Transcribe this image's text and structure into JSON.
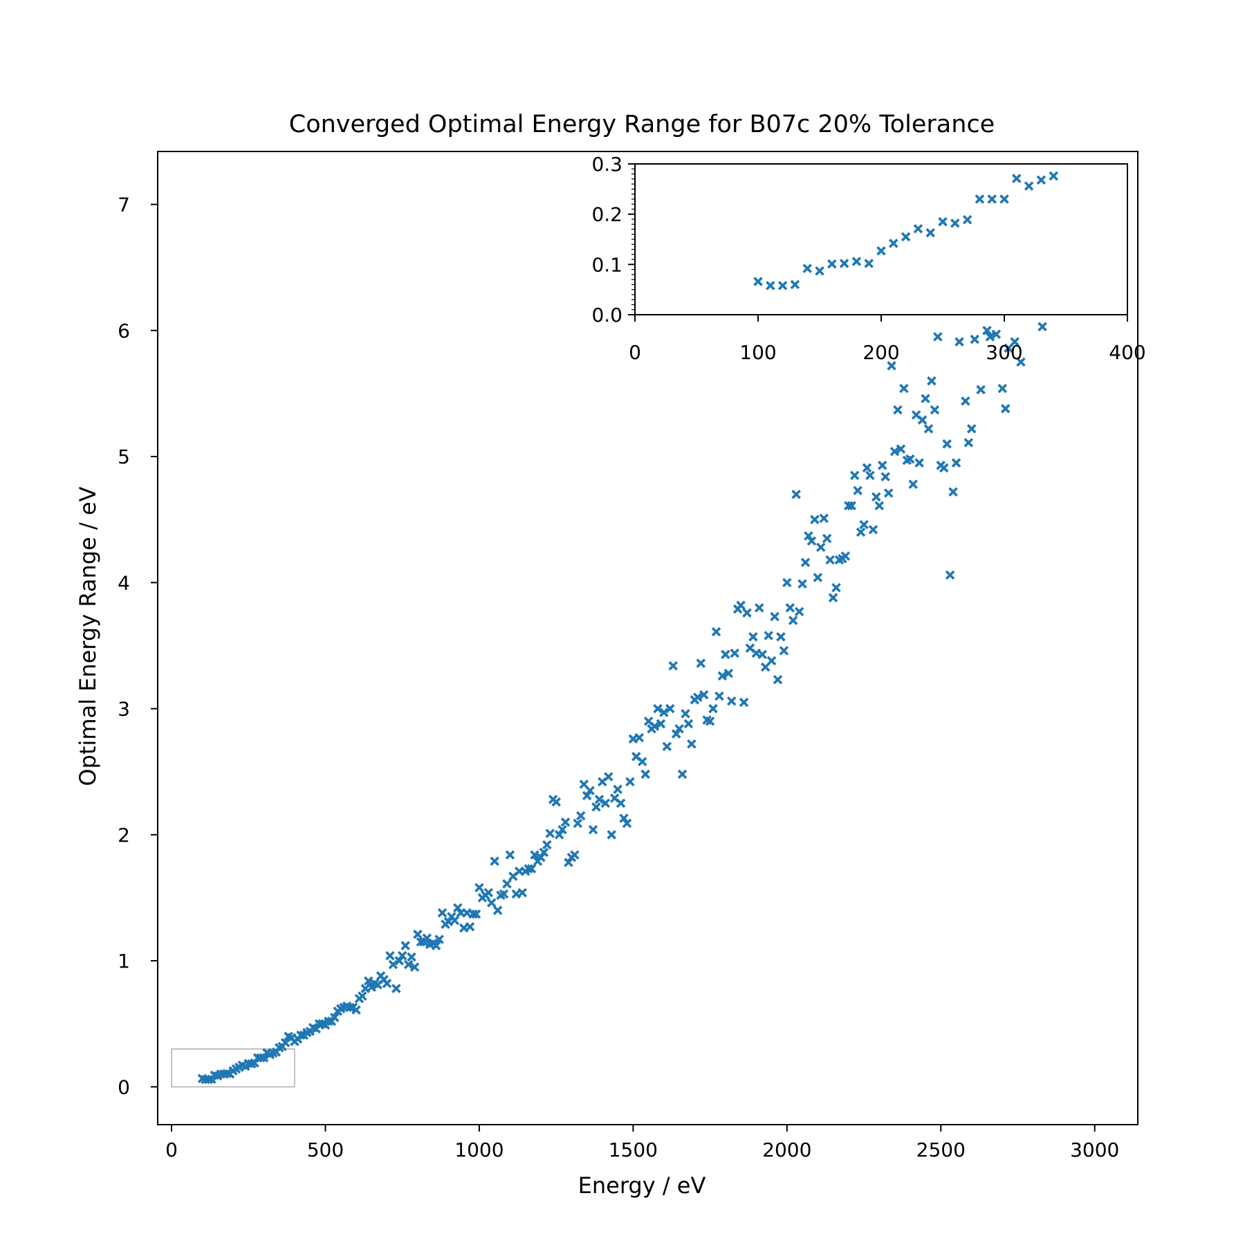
{
  "chart_data": {
    "type": "scatter",
    "title": "Converged Optimal Energy Range for B07c 20% Tolerance",
    "xlabel": "Energy / eV",
    "ylabel": "Optimal Energy Range / eV",
    "xlim": [
      -45,
      3140
    ],
    "ylim": [
      -0.3,
      7.42
    ],
    "xticks": [
      0,
      500,
      1000,
      1500,
      2000,
      2500,
      3000
    ],
    "yticks": [
      0,
      1,
      2,
      3,
      4,
      5,
      6,
      7
    ],
    "marker": "x",
    "color": "#1f77b4",
    "grid": false,
    "inset": {
      "xlim": [
        0,
        400
      ],
      "ylim": [
        0,
        0.3
      ],
      "xticks": [
        0,
        100,
        200,
        300,
        400
      ],
      "yticks": [
        0.0,
        0.1,
        0.2,
        0.3
      ],
      "ytick_labels": [
        "0.0",
        "0.1",
        "0.2",
        "0.3"
      ],
      "zoom_region": {
        "x": [
          0,
          400
        ],
        "y": [
          0,
          0.3
        ]
      }
    },
    "series": [
      {
        "points": [
          [
            100,
            0.066
          ],
          [
            110,
            0.058
          ],
          [
            120,
            0.058
          ],
          [
            130,
            0.06
          ],
          [
            140,
            0.092
          ],
          [
            150,
            0.087
          ],
          [
            160,
            0.101
          ],
          [
            170,
            0.102
          ],
          [
            180,
            0.106
          ],
          [
            190,
            0.102
          ],
          [
            200,
            0.127
          ],
          [
            210,
            0.142
          ],
          [
            220,
            0.155
          ],
          [
            230,
            0.171
          ],
          [
            240,
            0.163
          ],
          [
            250,
            0.185
          ],
          [
            260,
            0.182
          ],
          [
            270,
            0.189
          ],
          [
            280,
            0.23
          ],
          [
            290,
            0.23
          ],
          [
            300,
            0.23
          ],
          [
            310,
            0.271
          ],
          [
            320,
            0.256
          ],
          [
            330,
            0.268
          ],
          [
            340,
            0.276
          ],
          [
            350,
            0.31
          ],
          [
            360,
            0.32
          ],
          [
            370,
            0.35
          ],
          [
            380,
            0.4
          ],
          [
            390,
            0.39
          ],
          [
            400,
            0.36
          ],
          [
            410,
            0.38
          ],
          [
            420,
            0.41
          ],
          [
            430,
            0.41
          ],
          [
            440,
            0.43
          ],
          [
            450,
            0.44
          ],
          [
            460,
            0.47
          ],
          [
            470,
            0.46
          ],
          [
            480,
            0.5
          ],
          [
            490,
            0.5
          ],
          [
            500,
            0.49
          ],
          [
            510,
            0.52
          ],
          [
            520,
            0.52
          ],
          [
            530,
            0.55
          ],
          [
            540,
            0.6
          ],
          [
            550,
            0.62
          ],
          [
            560,
            0.63
          ],
          [
            570,
            0.64
          ],
          [
            580,
            0.63
          ],
          [
            590,
            0.63
          ],
          [
            600,
            0.61
          ],
          [
            610,
            0.7
          ],
          [
            620,
            0.72
          ],
          [
            630,
            0.78
          ],
          [
            640,
            0.84
          ],
          [
            650,
            0.79
          ],
          [
            660,
            0.82
          ],
          [
            670,
            0.81
          ],
          [
            680,
            0.88
          ],
          [
            690,
            0.85
          ],
          [
            700,
            0.82
          ],
          [
            710,
            1.04
          ],
          [
            720,
            0.97
          ],
          [
            730,
            0.78
          ],
          [
            740,
            1.0
          ],
          [
            750,
            1.04
          ],
          [
            760,
            1.12
          ],
          [
            770,
            0.97
          ],
          [
            780,
            1.03
          ],
          [
            790,
            0.95
          ],
          [
            800,
            1.21
          ],
          [
            810,
            1.15
          ],
          [
            820,
            1.15
          ],
          [
            830,
            1.18
          ],
          [
            840,
            1.13
          ],
          [
            850,
            1.14
          ],
          [
            860,
            1.12
          ],
          [
            870,
            1.17
          ],
          [
            880,
            1.38
          ],
          [
            890,
            1.29
          ],
          [
            900,
            1.31
          ],
          [
            910,
            1.35
          ],
          [
            920,
            1.32
          ],
          [
            930,
            1.42
          ],
          [
            940,
            1.38
          ],
          [
            950,
            1.26
          ],
          [
            960,
            1.38
          ],
          [
            970,
            1.27
          ],
          [
            980,
            1.37
          ],
          [
            990,
            1.37
          ],
          [
            1000,
            1.58
          ],
          [
            1010,
            1.5
          ],
          [
            1020,
            1.52
          ],
          [
            1030,
            1.54
          ],
          [
            1040,
            1.46
          ],
          [
            1050,
            1.79
          ],
          [
            1060,
            1.4
          ],
          [
            1070,
            1.52
          ],
          [
            1080,
            1.53
          ],
          [
            1090,
            1.61
          ],
          [
            1100,
            1.84
          ],
          [
            1110,
            1.67
          ],
          [
            1120,
            1.53
          ],
          [
            1130,
            1.71
          ],
          [
            1140,
            1.54
          ],
          [
            1150,
            1.71
          ],
          [
            1160,
            1.73
          ],
          [
            1170,
            1.73
          ],
          [
            1180,
            1.84
          ],
          [
            1190,
            1.79
          ],
          [
            1200,
            1.82
          ],
          [
            1210,
            1.86
          ],
          [
            1220,
            1.92
          ],
          [
            1230,
            2.01
          ],
          [
            1240,
            2.28
          ],
          [
            1250,
            2.26
          ],
          [
            1260,
            2.0
          ],
          [
            1270,
            2.04
          ],
          [
            1280,
            2.1
          ],
          [
            1290,
            1.78
          ],
          [
            1300,
            1.82
          ],
          [
            1310,
            1.84
          ],
          [
            1320,
            2.09
          ],
          [
            1330,
            2.15
          ],
          [
            1340,
            2.4
          ],
          [
            1350,
            2.31
          ],
          [
            1360,
            2.35
          ],
          [
            1370,
            2.04
          ],
          [
            1380,
            2.22
          ],
          [
            1390,
            2.28
          ],
          [
            1400,
            2.42
          ],
          [
            1410,
            2.25
          ],
          [
            1420,
            2.46
          ],
          [
            1430,
            2.0
          ],
          [
            1440,
            2.29
          ],
          [
            1450,
            2.36
          ],
          [
            1460,
            2.25
          ],
          [
            1470,
            2.13
          ],
          [
            1480,
            2.09
          ],
          [
            1490,
            2.42
          ],
          [
            1500,
            2.76
          ],
          [
            1510,
            2.62
          ],
          [
            1520,
            2.77
          ],
          [
            1530,
            2.58
          ],
          [
            1540,
            2.48
          ],
          [
            1550,
            2.9
          ],
          [
            1560,
            2.84
          ],
          [
            1570,
            2.86
          ],
          [
            1580,
            3.0
          ],
          [
            1590,
            2.88
          ],
          [
            1600,
            2.97
          ],
          [
            1610,
            2.7
          ],
          [
            1620,
            3.0
          ],
          [
            1630,
            3.34
          ],
          [
            1640,
            2.8
          ],
          [
            1650,
            2.84
          ],
          [
            1660,
            2.48
          ],
          [
            1670,
            2.96
          ],
          [
            1680,
            2.88
          ],
          [
            1690,
            2.72
          ],
          [
            1700,
            3.07
          ],
          [
            1710,
            3.09
          ],
          [
            1720,
            3.36
          ],
          [
            1730,
            3.11
          ],
          [
            1740,
            2.91
          ],
          [
            1750,
            2.9
          ],
          [
            1760,
            3.0
          ],
          [
            1770,
            3.61
          ],
          [
            1780,
            3.1
          ],
          [
            1790,
            3.26
          ],
          [
            1800,
            3.43
          ],
          [
            1810,
            3.28
          ],
          [
            1820,
            3.06
          ],
          [
            1830,
            3.44
          ],
          [
            1840,
            3.79
          ],
          [
            1850,
            3.82
          ],
          [
            1860,
            3.05
          ],
          [
            1870,
            3.76
          ],
          [
            1880,
            3.48
          ],
          [
            1890,
            3.57
          ],
          [
            1900,
            3.44
          ],
          [
            1910,
            3.8
          ],
          [
            1920,
            3.43
          ],
          [
            1930,
            3.33
          ],
          [
            1940,
            3.58
          ],
          [
            1950,
            3.38
          ],
          [
            1960,
            3.73
          ],
          [
            1970,
            3.23
          ],
          [
            1980,
            3.57
          ],
          [
            1990,
            3.46
          ],
          [
            2000,
            4.0
          ],
          [
            2010,
            3.8
          ],
          [
            2020,
            3.7
          ],
          [
            2030,
            4.7
          ],
          [
            2040,
            3.77
          ],
          [
            2050,
            3.99
          ],
          [
            2060,
            4.16
          ],
          [
            2070,
            4.37
          ],
          [
            2080,
            4.33
          ],
          [
            2090,
            4.5
          ],
          [
            2100,
            4.04
          ],
          [
            2110,
            4.28
          ],
          [
            2120,
            4.51
          ],
          [
            2130,
            4.35
          ],
          [
            2140,
            4.18
          ],
          [
            2150,
            3.88
          ],
          [
            2160,
            3.96
          ],
          [
            2170,
            4.18
          ],
          [
            2180,
            4.19
          ],
          [
            2190,
            4.21
          ],
          [
            2200,
            4.61
          ],
          [
            2210,
            4.61
          ],
          [
            2220,
            4.85
          ],
          [
            2230,
            4.73
          ],
          [
            2240,
            4.4
          ],
          [
            2250,
            4.46
          ],
          [
            2260,
            4.91
          ],
          [
            2270,
            4.85
          ],
          [
            2280,
            4.42
          ],
          [
            2290,
            4.68
          ],
          [
            2300,
            4.61
          ],
          [
            2310,
            4.93
          ],
          [
            2320,
            4.84
          ],
          [
            2330,
            4.71
          ],
          [
            2340,
            5.72
          ],
          [
            2350,
            5.04
          ],
          [
            2360,
            5.37
          ],
          [
            2370,
            5.06
          ],
          [
            2380,
            5.54
          ],
          [
            2390,
            4.97
          ],
          [
            2400,
            4.98
          ],
          [
            2410,
            4.78
          ],
          [
            2420,
            5.33
          ],
          [
            2430,
            4.95
          ],
          [
            2440,
            5.29
          ],
          [
            2450,
            5.46
          ],
          [
            2460,
            5.22
          ],
          [
            2470,
            5.6
          ],
          [
            2480,
            5.37
          ],
          [
            2490,
            5.95
          ],
          [
            2500,
            4.93
          ],
          [
            2510,
            4.91
          ],
          [
            2520,
            5.1
          ],
          [
            2530,
            4.06
          ],
          [
            2540,
            4.72
          ],
          [
            2550,
            4.95
          ],
          [
            2560,
            5.91
          ],
          [
            2580,
            5.44
          ],
          [
            2590,
            5.11
          ],
          [
            2600,
            5.22
          ],
          [
            2610,
            5.93
          ],
          [
            2630,
            5.53
          ],
          [
            2650,
            6.0
          ],
          [
            2660,
            5.95
          ],
          [
            2680,
            5.97
          ],
          [
            2700,
            5.54
          ],
          [
            2710,
            5.38
          ],
          [
            2720,
            5.86
          ],
          [
            2740,
            5.91
          ],
          [
            2760,
            5.75
          ],
          [
            2830,
            6.03
          ]
        ]
      }
    ]
  }
}
